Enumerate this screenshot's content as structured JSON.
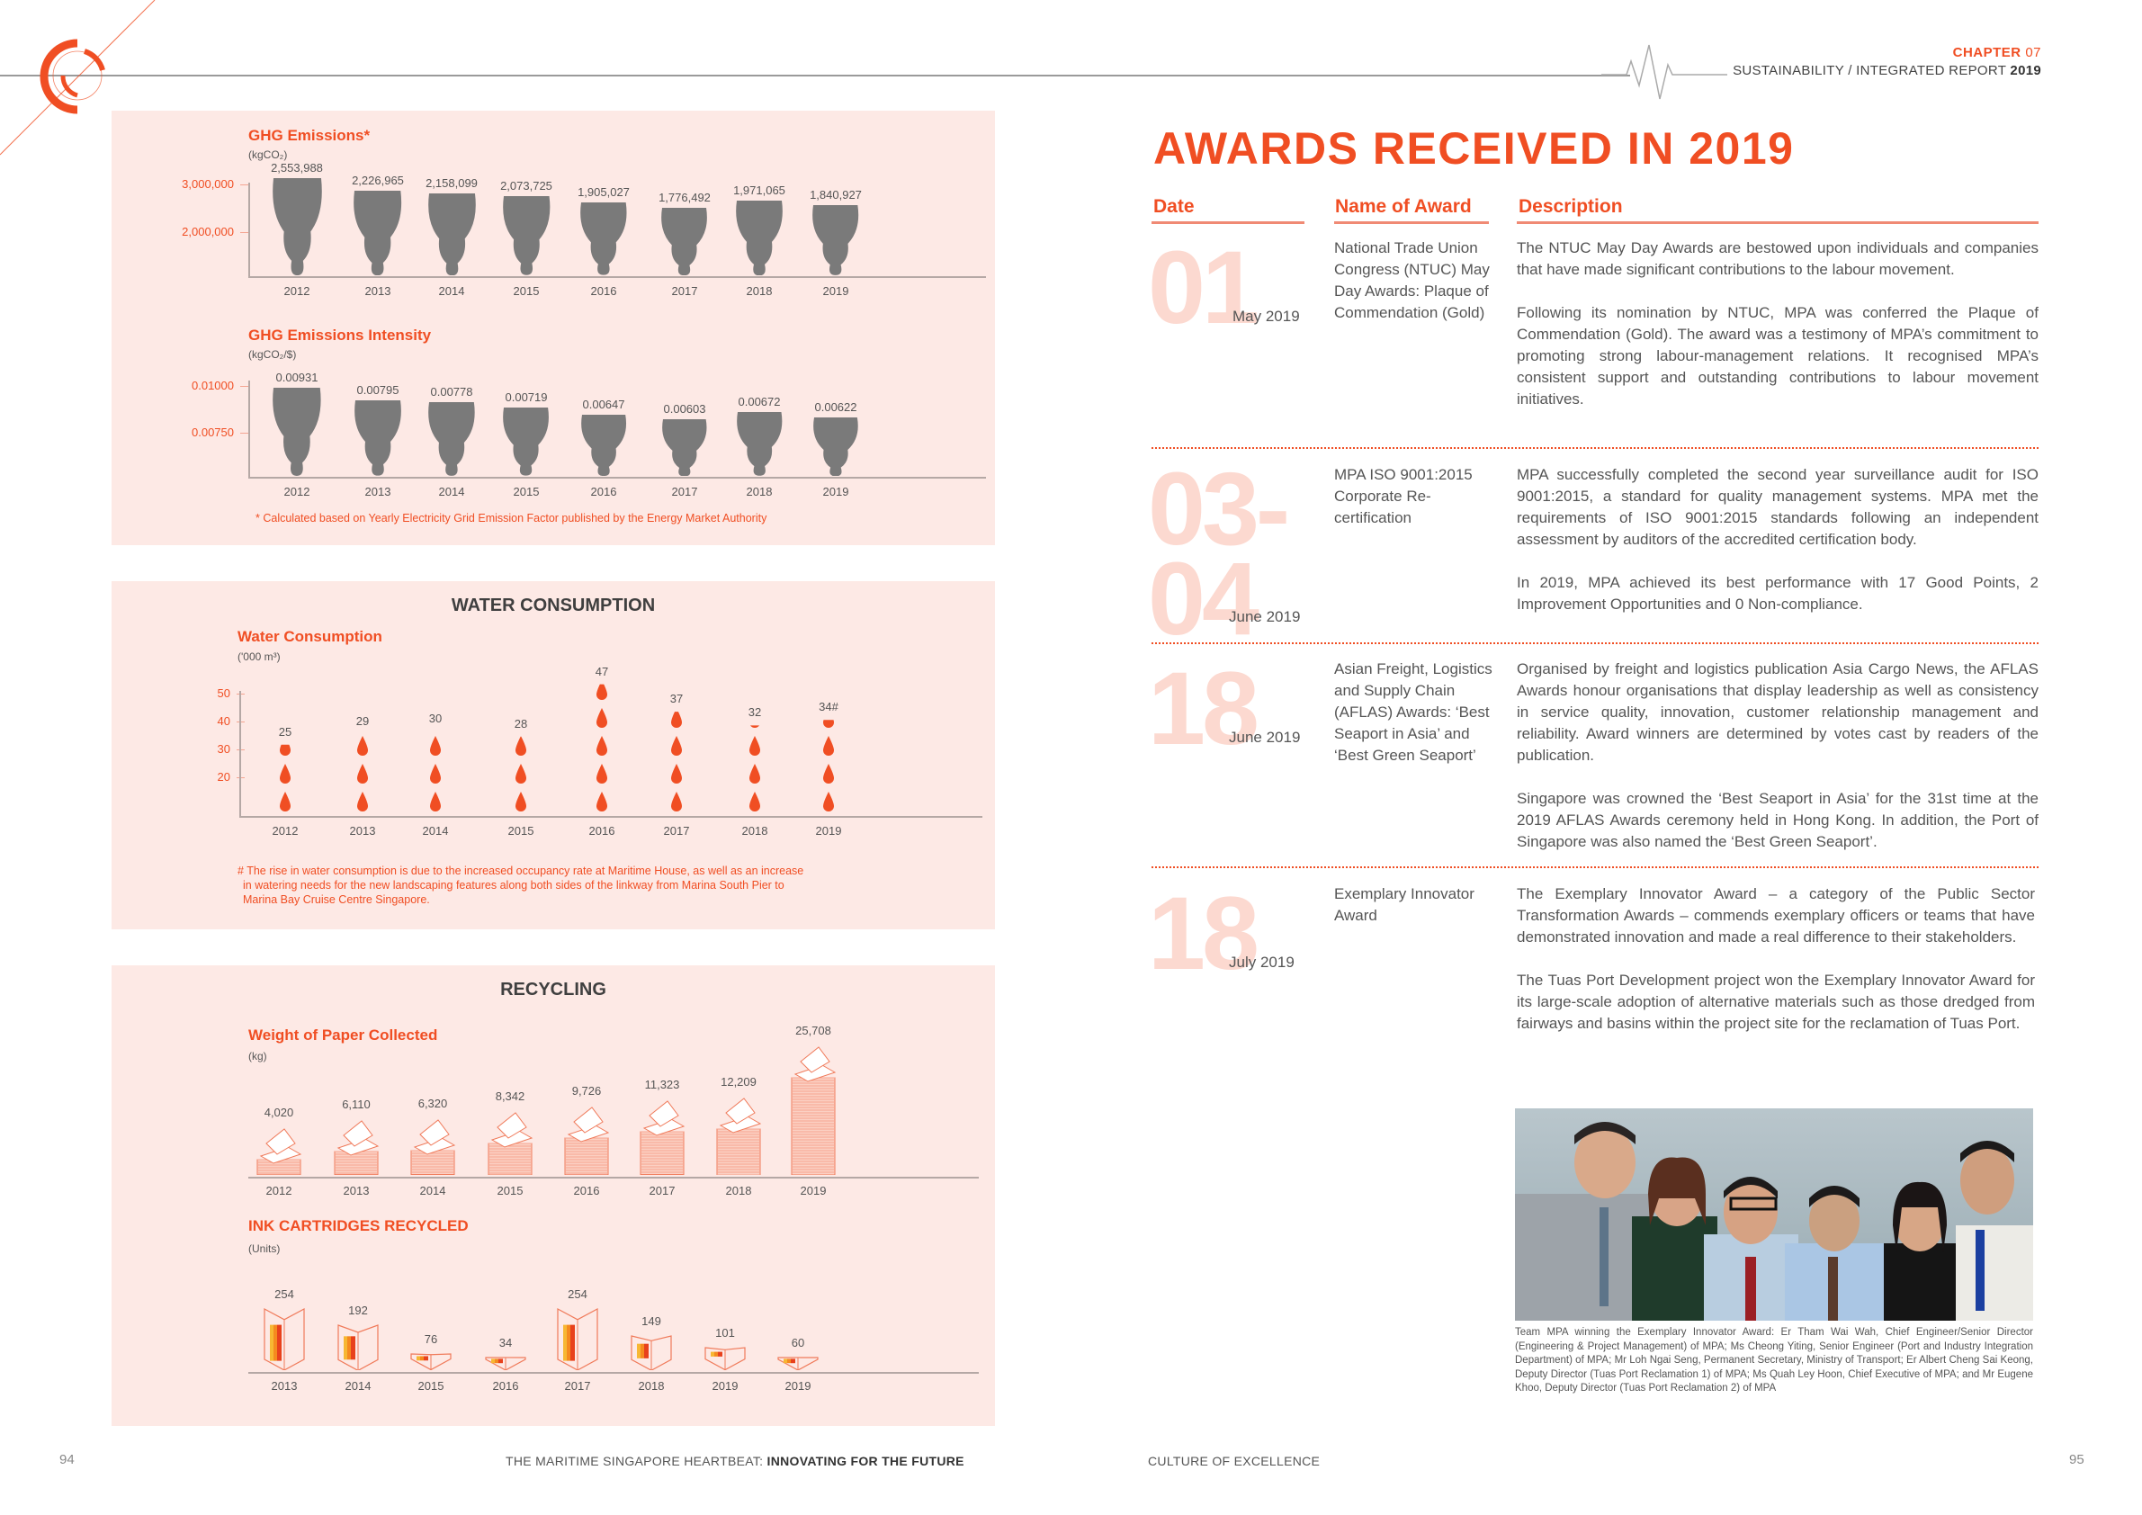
{
  "header": {
    "chapter_label": "CHAPTER",
    "chapter_num": "07",
    "report_label": "SUSTAINABILITY / INTEGRATED REPORT",
    "report_year": "2019"
  },
  "left_page": {
    "ghg_emissions": {
      "title": "GHG Emissions*",
      "unit": "(kgCO₂)",
      "y_ticks": [
        "3,000,000",
        "2,000,000"
      ]
    },
    "ghg_intensity": {
      "title": "GHG Emissions Intensity",
      "unit": "(kgCO₂/$)",
      "y_ticks": [
        "0.01000",
        "0.00750"
      ],
      "note": "* Calculated based on Yearly Electricity Grid Emission Factor published by the Energy Market Authority"
    },
    "water": {
      "section_title": "WATER CONSUMPTION",
      "title": "Water Consumption",
      "unit": "('000 m³)",
      "y_ticks": [
        "50",
        "40",
        "30",
        "20"
      ],
      "note_line1": "# The rise in water consumption is due to the increased occupancy rate at Maritime House, as well as an increase",
      "note_line2": "in watering needs for the new landscaping features along both sides of the linkway from Marina South Pier to",
      "note_line3": "Marina Bay Cruise Centre Singapore."
    },
    "recycling": {
      "section_title": "RECYCLING",
      "paper_title": "Weight of Paper Collected",
      "paper_unit": "(kg)",
      "ink_title": "INK CARTRIDGES RECYCLED",
      "ink_unit": "(Units)"
    },
    "footer_normal": "THE MARITIME SINGAPORE HEARTBEAT: ",
    "footer_bold": "INNOVATING FOR THE FUTURE",
    "page_number": "94"
  },
  "chart_data": [
    {
      "type": "bar",
      "title": "GHG Emissions*",
      "ylabel": "kgCO2",
      "categories": [
        "2012",
        "2013",
        "2014",
        "2015",
        "2016",
        "2017",
        "2018",
        "2019"
      ],
      "values": [
        2553988,
        2226965,
        2158099,
        2073725,
        1905027,
        1776492,
        1971065,
        1840927
      ],
      "labels": [
        "2,553,988",
        "2,226,965",
        "2,158,099",
        "2,073,725",
        "1,905,027",
        "1,776,492",
        "1,971,065",
        "1,840,927"
      ],
      "y_ticks": [
        3000000,
        2000000
      ],
      "grid": false
    },
    {
      "type": "bar",
      "title": "GHG Emissions Intensity",
      "ylabel": "kgCO2/$",
      "categories": [
        "2012",
        "2013",
        "2014",
        "2015",
        "2016",
        "2017",
        "2018",
        "2019"
      ],
      "values": [
        0.00931,
        0.00795,
        0.00778,
        0.00719,
        0.00647,
        0.00603,
        0.00672,
        0.00622
      ],
      "labels": [
        "0.00931",
        "0.00795",
        "0.00778",
        "0.00719",
        "0.00647",
        "0.00603",
        "0.00672",
        "0.00622"
      ],
      "y_ticks": [
        0.01,
        0.0075
      ],
      "annotation": "* Calculated based on Yearly Electricity Grid Emission Factor published by the Energy Market Authority",
      "grid": false
    },
    {
      "type": "bar",
      "title": "Water Consumption",
      "ylabel": "'000 m3",
      "categories": [
        "2012",
        "2013",
        "2014",
        "2015",
        "2016",
        "2017",
        "2018",
        "2019"
      ],
      "values": [
        25,
        29,
        30,
        28,
        47,
        37,
        32,
        34
      ],
      "labels": [
        "25",
        "29",
        "30",
        "28",
        "47",
        "37",
        "32",
        "34#"
      ],
      "y_ticks": [
        50,
        40,
        30,
        20
      ],
      "ylim": [
        0,
        50
      ],
      "grid": false
    },
    {
      "type": "bar",
      "title": "Weight of Paper Collected",
      "ylabel": "kg",
      "categories": [
        "2012",
        "2013",
        "2014",
        "2015",
        "2016",
        "2017",
        "2018",
        "2019"
      ],
      "values": [
        4020,
        6110,
        6320,
        8342,
        9726,
        11323,
        12209,
        25708
      ],
      "labels": [
        "4,020",
        "6,110",
        "6,320",
        "8,342",
        "9,726",
        "11,323",
        "12,209",
        "25,708"
      ],
      "grid": false
    },
    {
      "type": "bar",
      "title": "INK CARTRIDGES RECYCLED",
      "ylabel": "Units",
      "categories": [
        "2013",
        "2014",
        "2015",
        "2016",
        "2017",
        "2018",
        "2019",
        "2019"
      ],
      "values": [
        254,
        192,
        76,
        34,
        254,
        149,
        101,
        60
      ],
      "labels": [
        "254",
        "192",
        "76",
        "34",
        "254",
        "149",
        "101",
        "60"
      ],
      "grid": false
    }
  ],
  "right_page": {
    "title": "AWARDS RECEIVED IN 2019",
    "columns": [
      "Date",
      "Name of Award",
      "Description"
    ],
    "awards": [
      {
        "day": "01",
        "month": "May 2019",
        "name": "National Trade Union Congress (NTUC) May Day Awards: Plaque of Commendation (Gold)",
        "desc1": "The NTUC May Day Awards are bestowed upon individuals and companies that have made significant contributions to the labour movement.",
        "desc2": "Following its nomination by NTUC, MPA was conferred the Plaque of Commendation (Gold). The award was a testimony of MPA’s commitment to promoting strong labour-management relations. It recognised MPA’s consistent support and outstanding contributions to labour movement initiatives."
      },
      {
        "day": "03-04",
        "day_line1": "03-",
        "day_line2": "04",
        "month": "June 2019",
        "name": "MPA ISO 9001:2015 Corporate Re-certification",
        "desc1": "MPA successfully completed the second year surveillance audit for ISO 9001:2015, a standard for quality management systems. MPA met the requirements of ISO 9001:2015 standards following an independent assessment by auditors of the accredited certification body.",
        "desc2": "In 2019, MPA achieved its best performance with 17 Good Points, 2 Improvement Opportunities and 0 Non-compliance."
      },
      {
        "day": "18",
        "month": "June 2019",
        "name": "Asian Freight, Logistics and Supply Chain (AFLAS) Awards: ‘Best Seaport in Asia’ and ‘Best Green Seaport’",
        "desc1": "Organised by freight and logistics publication Asia Cargo News, the AFLAS Awards honour organisations that display leadership as well as consistency in service quality, innovation, customer relationship management and reliability. Award winners are determined by votes cast by readers of the publication.",
        "desc2": "Singapore was crowned the ‘Best Seaport in Asia’ for the 31st time at the 2019 AFLAS Awards ceremony held in Hong Kong. In addition, the Port of Singapore was also named the ‘Best Green Seaport’."
      },
      {
        "day": "18",
        "month": "July 2019",
        "name": "Exemplary Innovator Award",
        "desc1": "The Exemplary Innovator Award – a category of the Public Sector Transformation Awards – commends exemplary officers or teams that have demonstrated innovation and made a real difference to their stakeholders.",
        "desc2": "The Tuas Port Development project won the Exemplary Innovator Award for its large-scale adoption of alternative materials such as those dredged from fairways and basins within the project site for the reclamation of Tuas Port."
      }
    ],
    "photo_caption": "Team MPA winning the Exemplary Innovator Award: Er Tham Wai Wah, Chief Engineer/Senior Director (Engineering & Project Management) of MPA; Ms Cheong Yiting, Senior Engineer (Port and Industry Integration Department) of MPA; Mr Loh Ngai Seng, Permanent Secretary, Ministry of Transport; Er Albert Cheng Sai Keong, Deputy Director (Tuas Port Reclamation 1) of MPA; Ms Quah Ley Hoon, Chief Executive of MPA; and Mr Eugene Khoo, Deputy Director (Tuas Port Reclamation 2) of MPA",
    "footer": "CULTURE OF EXCELLENCE",
    "page_number": "95"
  },
  "colors": {
    "accent": "#f04e23",
    "panel_bg": "#fde9e5",
    "big_date": "#fcd9d0",
    "smoke": "#7a7a7a"
  }
}
